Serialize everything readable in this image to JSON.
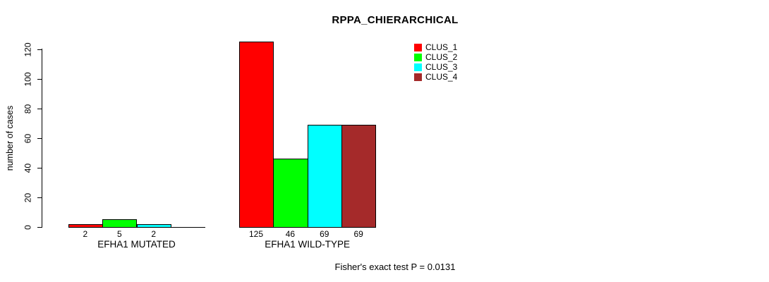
{
  "chart_data": {
    "type": "bar",
    "title": "RPPA_CHIERARCHICAL",
    "ylabel": "number of cases",
    "xlabel": "",
    "categories": [
      "EFHA1 MUTATED",
      "EFHA1 WILD-TYPE"
    ],
    "series": [
      {
        "name": "CLUS_1",
        "color": "#FF0000",
        "values": [
          2,
          125
        ]
      },
      {
        "name": "CLUS_2",
        "color": "#00FF00",
        "values": [
          5,
          46
        ]
      },
      {
        "name": "CLUS_3",
        "color": "#00FFFF",
        "values": [
          2,
          69
        ]
      },
      {
        "name": "CLUS_4",
        "color": "#A52A2A",
        "values": [
          0,
          69
        ]
      }
    ],
    "bar_labels": [
      [
        "2",
        "5",
        "2",
        ""
      ],
      [
        "125",
        "46",
        "69",
        "69"
      ]
    ],
    "yticks": [
      0,
      20,
      40,
      60,
      80,
      100,
      120
    ],
    "ylim": [
      0,
      125
    ],
    "grid": false,
    "legend_position": "top-right",
    "annotation": "Fisher's exact test P = 0.0131"
  }
}
